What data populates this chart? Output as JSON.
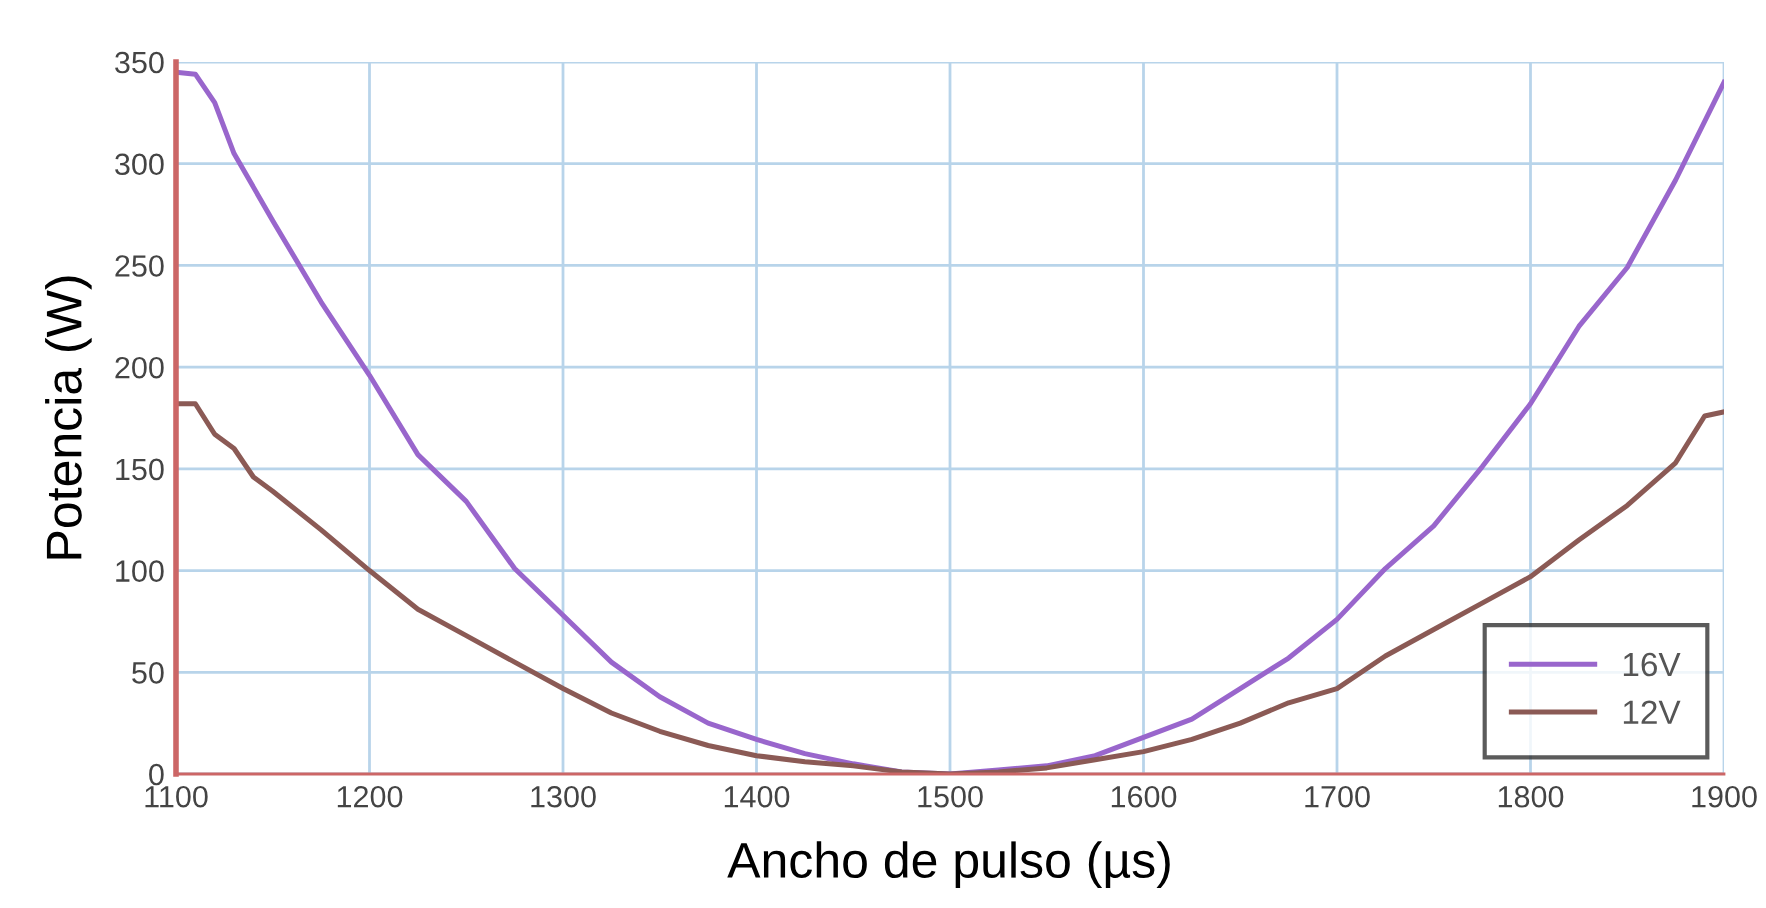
{
  "chart_data": {
    "type": "line",
    "xlabel": "Ancho de pulso (µs)",
    "ylabel": "Potencia (W)",
    "xlim": [
      1100,
      1900
    ],
    "xticks": [
      1100,
      1200,
      1300,
      1400,
      1500,
      1600,
      1700,
      1800,
      1900
    ],
    "ylim": [
      0,
      350
    ],
    "yticks": [
      0,
      50,
      100,
      150,
      200,
      250,
      300,
      350
    ],
    "grid": true,
    "legend": "bottom right",
    "marker": "none",
    "line_style": "solid",
    "series": [
      {
        "name": "16V",
        "color": "#9966cc",
        "x": [
          1100,
          1110,
          1120,
          1130,
          1150,
          1175,
          1200,
          1225,
          1250,
          1275,
          1300,
          1325,
          1350,
          1375,
          1400,
          1425,
          1450,
          1475,
          1500,
          1525,
          1550,
          1575,
          1600,
          1625,
          1650,
          1675,
          1700,
          1725,
          1750,
          1775,
          1800,
          1825,
          1850,
          1875,
          1900
        ],
        "values": [
          345,
          344,
          330,
          305,
          272,
          232,
          196,
          157,
          134,
          101,
          78,
          55,
          38,
          25,
          17,
          10,
          5,
          1,
          0,
          2,
          4,
          9,
          18,
          27,
          42,
          57,
          76,
          101,
          122,
          151,
          182,
          220,
          249,
          292,
          340
        ]
      },
      {
        "name": "12V",
        "color": "#8b5a55",
        "x": [
          1100,
          1110,
          1120,
          1130,
          1140,
          1150,
          1175,
          1200,
          1225,
          1250,
          1275,
          1300,
          1325,
          1350,
          1375,
          1400,
          1425,
          1450,
          1475,
          1500,
          1525,
          1550,
          1575,
          1600,
          1625,
          1650,
          1675,
          1700,
          1725,
          1750,
          1775,
          1800,
          1825,
          1850,
          1875,
          1890,
          1900
        ],
        "values": [
          182,
          182,
          167,
          160,
          146,
          139,
          120,
          100,
          81,
          68,
          55,
          42,
          30,
          21,
          14,
          9,
          6,
          4,
          1,
          0,
          1,
          3,
          7,
          11,
          17,
          25,
          35,
          42,
          58,
          71,
          84,
          97,
          115,
          132,
          153,
          176,
          178
        ]
      }
    ]
  }
}
